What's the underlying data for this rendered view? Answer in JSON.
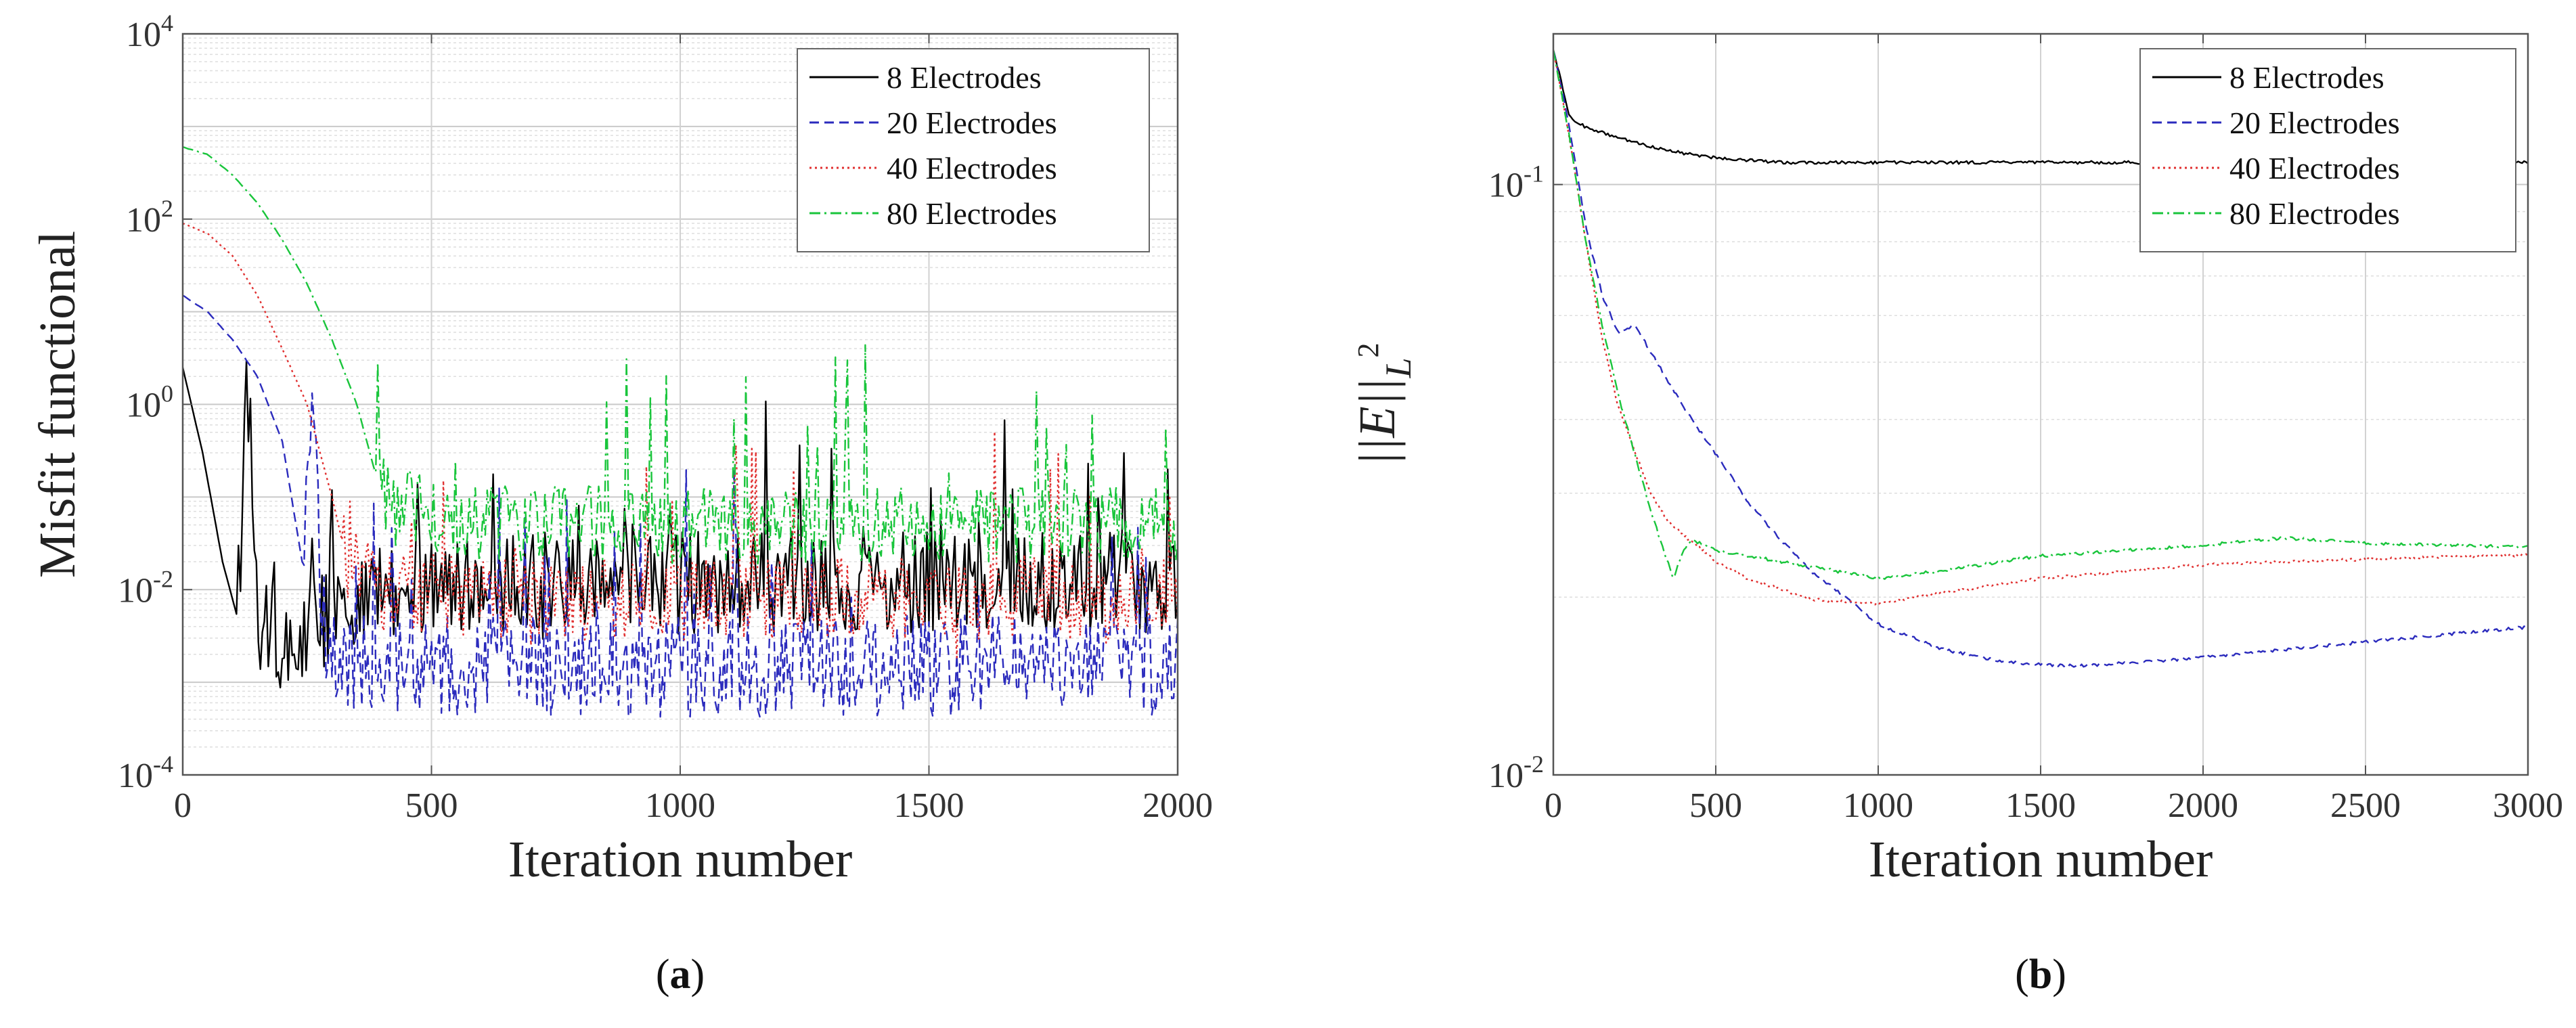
{
  "chart_data": [
    {
      "type": "line",
      "panel": "(a)",
      "panel_letter": "a",
      "xlabel": "Iteration number",
      "ylabel": "Misfit functional",
      "yscale": "log",
      "xlim": [
        0,
        2000
      ],
      "ylim": [
        0.0001,
        10000
      ],
      "xticks": [
        0,
        500,
        1000,
        1500,
        2000
      ],
      "xtick_labels": [
        "0",
        "500",
        "1000",
        "1500",
        "2000"
      ],
      "ytick_labels": [
        {
          "base": "10",
          "exp": "-4"
        },
        {
          "base": "10",
          "exp": "-2"
        },
        {
          "base": "10",
          "exp": "0"
        },
        {
          "base": "10",
          "exp": "2"
        },
        {
          "base": "10",
          "exp": "4"
        }
      ],
      "grid": true,
      "legend": "top-right",
      "series": [
        {
          "name": "8 Electrodes",
          "color": "#000000",
          "dash": "solid",
          "x": [
            0,
            40,
            80,
            110,
            130,
            150,
            160,
            180,
            200,
            250,
            300,
            400,
            600,
            800,
            1000,
            1200,
            1400,
            1600,
            1800,
            2000
          ],
          "y": [
            2.5,
            0.3,
            0.02,
            0.005,
            1.8,
            0.01,
            0.003,
            0.004,
            0.002,
            0.003,
            0.006,
            0.01,
            0.012,
            0.012,
            0.012,
            0.012,
            0.012,
            0.012,
            0.012,
            0.012
          ]
        },
        {
          "name": "20 Electrodes",
          "color": "#2b2bbd",
          "dash": "dashed",
          "x": [
            0,
            50,
            100,
            150,
            200,
            240,
            260,
            280,
            300,
            400,
            600,
            800,
            1000,
            1200,
            1400,
            1600,
            1800,
            2000
          ],
          "y": [
            15,
            10,
            5,
            2,
            0.4,
            0.02,
            1.5,
            0.005,
            0.002,
            0.0015,
            0.0015,
            0.0015,
            0.0015,
            0.0015,
            0.0015,
            0.0015,
            0.0015,
            0.0015
          ]
        },
        {
          "name": "40 Electrodes",
          "color": "#e03030",
          "dash": "dotted",
          "x": [
            0,
            50,
            100,
            150,
            200,
            250,
            300,
            330,
            400,
            600,
            800,
            1000,
            1200,
            1400,
            1600,
            1800,
            2000
          ],
          "y": [
            90,
            70,
            40,
            15,
            4,
            1,
            0.1,
            0.02,
            0.01,
            0.008,
            0.008,
            0.008,
            0.008,
            0.008,
            0.008,
            0.008,
            0.008
          ]
        },
        {
          "name": "80 Electrodes",
          "color": "#19c53b",
          "dash": "dashdot",
          "x": [
            0,
            50,
            100,
            150,
            200,
            250,
            300,
            350,
            400,
            600,
            800,
            1000,
            1200,
            1400,
            1600,
            1800,
            2000
          ],
          "y": [
            600,
            500,
            300,
            150,
            60,
            20,
            5,
            1,
            0.1,
            0.05,
            0.05,
            0.05,
            0.05,
            0.05,
            0.05,
            0.05,
            0.05
          ]
        }
      ]
    },
    {
      "type": "line",
      "panel": "(b)",
      "panel_letter": "b",
      "xlabel": "Iteration number",
      "ylabel_norm": "||E||",
      "ylabel_sub": "L",
      "ylabel_sup": "2",
      "yscale": "log",
      "xlim": [
        0,
        3000
      ],
      "ylim": [
        0.01,
        0.18
      ],
      "xticks": [
        0,
        500,
        1000,
        1500,
        2000,
        2500,
        3000
      ],
      "xtick_labels": [
        "0",
        "500",
        "1000",
        "1500",
        "2000",
        "2500",
        "3000"
      ],
      "ytick_labels": [
        {
          "base": "10",
          "exp": "-2"
        },
        {
          "base": "10",
          "exp": "-1"
        }
      ],
      "grid": true,
      "legend": "top-right",
      "series": [
        {
          "name": "8 Electrodes",
          "color": "#000000",
          "dash": "solid",
          "x": [
            0,
            50,
            100,
            200,
            300,
            400,
            500,
            600,
            700,
            800,
            1000,
            1500,
            2000,
            2500,
            3000
          ],
          "y": [
            0.17,
            0.13,
            0.125,
            0.12,
            0.116,
            0.113,
            0.111,
            0.11,
            0.109,
            0.109,
            0.109,
            0.109,
            0.109,
            0.109,
            0.109
          ]
        },
        {
          "name": "20 Electrodes",
          "color": "#2b2bbd",
          "dash": "dashed",
          "x": [
            0,
            50,
            100,
            150,
            200,
            250,
            300,
            400,
            500,
            600,
            700,
            800,
            900,
            1000,
            1200,
            1400,
            1600,
            1800,
            2000,
            2200,
            2500,
            2800,
            3000
          ],
          "y": [
            0.17,
            0.125,
            0.085,
            0.065,
            0.056,
            0.058,
            0.052,
            0.042,
            0.035,
            0.029,
            0.025,
            0.022,
            0.02,
            0.018,
            0.0163,
            0.0155,
            0.0153,
            0.0155,
            0.0158,
            0.0162,
            0.0168,
            0.0174,
            0.0178
          ]
        },
        {
          "name": "40 Electrodes",
          "color": "#e03030",
          "dash": "dotted",
          "x": [
            0,
            50,
            100,
            150,
            200,
            300,
            350,
            400,
            500,
            600,
            800,
            1000,
            1200,
            1500,
            2000,
            2500,
            3000
          ],
          "y": [
            0.17,
            0.12,
            0.08,
            0.055,
            0.042,
            0.03,
            0.027,
            0.0255,
            0.023,
            0.0215,
            0.0198,
            0.0195,
            0.0204,
            0.0215,
            0.0227,
            0.0232,
            0.0236
          ]
        },
        {
          "name": "80 Electrodes",
          "color": "#19c53b",
          "dash": "dashdot",
          "x": [
            0,
            50,
            100,
            150,
            200,
            250,
            300,
            340,
            370,
            400,
            430,
            500,
            600,
            800,
            1000,
            1200,
            1500,
            2000,
            2250,
            2500,
            3000
          ],
          "y": [
            0.17,
            0.12,
            0.08,
            0.058,
            0.044,
            0.035,
            0.028,
            0.024,
            0.0215,
            0.024,
            0.025,
            0.024,
            0.0235,
            0.0225,
            0.0215,
            0.0222,
            0.0235,
            0.0245,
            0.0252,
            0.0247,
            0.0243
          ]
        }
      ]
    }
  ]
}
